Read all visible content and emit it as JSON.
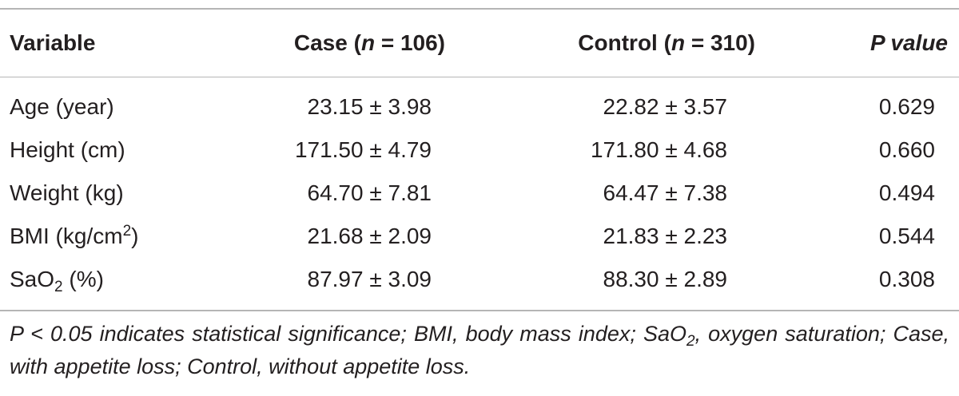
{
  "header": {
    "variable": "Variable",
    "case_prefix": "Case (",
    "case_n": "n",
    "case_suffix": " = 106)",
    "control_prefix": "Control (",
    "control_n": "n",
    "control_suffix": " = 310)",
    "p_value": "P value"
  },
  "rows": [
    {
      "label": "Age (year)",
      "case": "23.15 ± 3.98",
      "control": "22.82 ± 3.57",
      "p": "0.629"
    },
    {
      "label": "Height (cm)",
      "case": "171.50 ± 4.79",
      "control": "171.80 ± 4.68",
      "p": "0.660"
    },
    {
      "label": "Weight (kg)",
      "case": "64.70 ± 7.81",
      "control": "64.47 ± 7.38",
      "p": "0.494"
    },
    {
      "label_pre": "BMI (kg/cm",
      "label_sup": "2",
      "label_post": ")",
      "case": "21.68 ± 2.09",
      "control": "21.83 ± 2.23",
      "p": "0.544"
    },
    {
      "label_pre": "SaO",
      "label_sub": "2",
      "label_post": " (%)",
      "case": "87.97 ± 3.09",
      "control": "88.30 ± 2.89",
      "p": "0.308"
    }
  ],
  "footnote": {
    "part1": "P < 0.05 indicates statistical significance; BMI, body mass index; SaO",
    "sub": "2",
    "part2": ", oxygen saturation; Case, with appetite loss; Control, without appetite loss."
  }
}
